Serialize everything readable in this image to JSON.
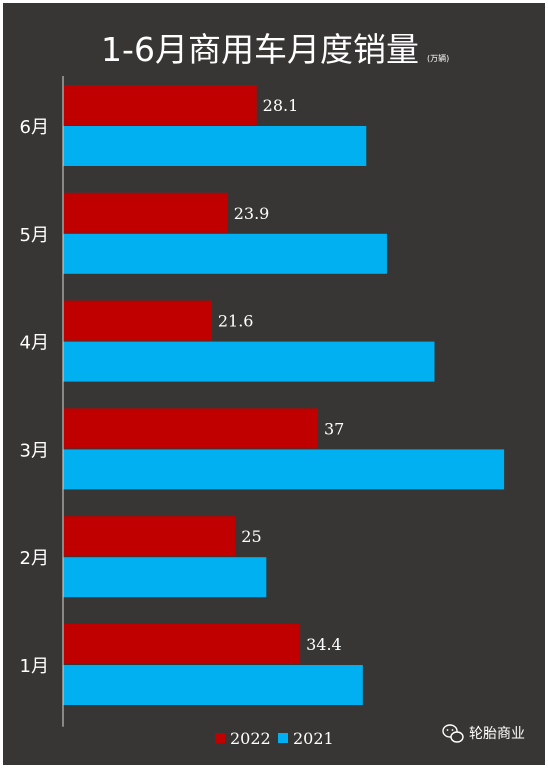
{
  "chart_data": {
    "type": "bar",
    "orientation": "horizontal",
    "title": "1-6月商用车月度销量",
    "unit": "(万辆)",
    "categories": [
      "1月",
      "2月",
      "3月",
      "4月",
      "5月",
      "6月"
    ],
    "series": [
      {
        "name": "2022",
        "values": [
          34.4,
          25,
          37,
          21.6,
          23.9,
          28.1
        ],
        "color": "#c00000",
        "labels": [
          "34.4",
          "25",
          "37",
          "21.6",
          "23.9",
          "28.1"
        ]
      },
      {
        "name": "2021",
        "values": [
          43.5,
          29.5,
          64,
          53.9,
          47,
          44
        ],
        "color": "#00b0f0"
      }
    ],
    "xlim": [
      0,
      65
    ],
    "grid": false,
    "legend_position": "bottom"
  },
  "watermark": {
    "text": "轮胎商业",
    "icon": "wechat-icon"
  },
  "colors": {
    "background": "#383634",
    "text": "#ffffff"
  }
}
